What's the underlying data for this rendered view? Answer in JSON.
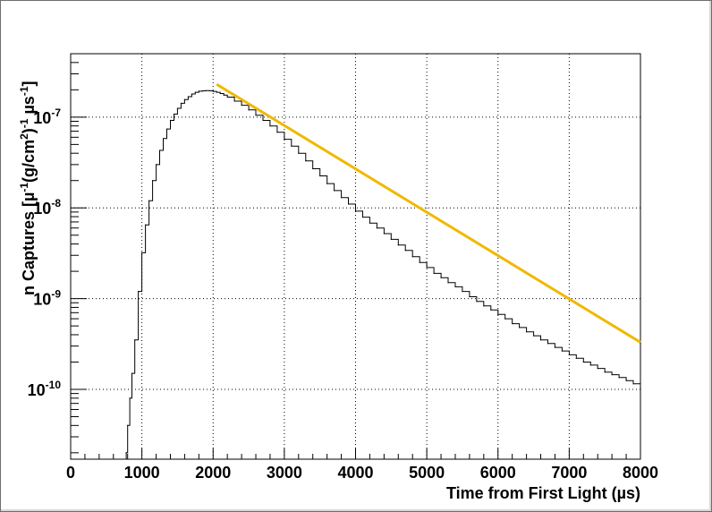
{
  "chart_data": {
    "type": "line",
    "title": "",
    "xlabel": "Time from First Light (µs)",
    "ylabel_parts": [
      "n Captures [µ",
      "-1",
      "(g/cm",
      "2",
      ")",
      "-1",
      " µs",
      "-1",
      "]"
    ],
    "xlim": [
      0,
      8000
    ],
    "ylim": [
      1.7e-11,
      5e-07
    ],
    "yscale": "log",
    "grid": true,
    "x_ticks": [
      "0",
      "1000",
      "2000",
      "3000",
      "4000",
      "5000",
      "6000",
      "7000",
      "8000"
    ],
    "y_ticks": [
      {
        "base": "10",
        "exp": "-10",
        "value": 1e-10
      },
      {
        "base": "10",
        "exp": "-9",
        "value": 1e-09
      },
      {
        "base": "10",
        "exp": "-8",
        "value": 1e-08
      },
      {
        "base": "10",
        "exp": "-7",
        "value": 1e-07
      }
    ],
    "series": [
      {
        "style": "histogram",
        "color": "#000000",
        "x": [
          780,
          800,
          830,
          860,
          900,
          950,
          1000,
          1050,
          1100,
          1150,
          1200,
          1250,
          1300,
          1350,
          1400,
          1450,
          1500,
          1550,
          1600,
          1650,
          1700,
          1750,
          1800,
          1850,
          1900,
          1950,
          2000,
          2050,
          2100,
          2150,
          2200,
          2300,
          2400,
          2500,
          2600,
          2700,
          2800,
          2900,
          3000,
          3100,
          3200,
          3300,
          3400,
          3500,
          3600,
          3700,
          3800,
          3900,
          4000,
          4100,
          4200,
          4300,
          4400,
          4500,
          4600,
          4700,
          4800,
          4900,
          5000,
          5100,
          5200,
          5300,
          5400,
          5500,
          5600,
          5700,
          5800,
          5900,
          6000,
          6100,
          6200,
          6300,
          6400,
          6500,
          6600,
          6700,
          6800,
          6900,
          7000,
          7100,
          7200,
          7300,
          7400,
          7500,
          7600,
          7700,
          7800,
          7900,
          8000
        ],
        "y": [
          2e-11,
          4e-11,
          8e-11,
          1.5e-10,
          3.5e-10,
          1.2e-09,
          3.2e-09,
          6.5e-09,
          1.2e-08,
          2e-08,
          3e-08,
          4.3e-08,
          5.8e-08,
          7.4e-08,
          9.2e-08,
          1.08e-07,
          1.25e-07,
          1.42e-07,
          1.56e-07,
          1.68e-07,
          1.8e-07,
          1.88e-07,
          1.93e-07,
          1.95e-07,
          1.96e-07,
          1.95e-07,
          1.92e-07,
          1.88e-07,
          1.82e-07,
          1.75e-07,
          1.66e-07,
          1.5e-07,
          1.35e-07,
          1.2e-07,
          1.05e-07,
          9.2e-08,
          8e-08,
          6.8e-08,
          5.7e-08,
          4.8e-08,
          4e-08,
          3.3e-08,
          2.7e-08,
          2.25e-08,
          1.85e-08,
          1.55e-08,
          1.3e-08,
          1.1e-08,
          9.2e-09,
          7.9e-09,
          6.8e-09,
          6e-09,
          5.2e-09,
          4.5e-09,
          3.9e-09,
          3.4e-09,
          2.9e-09,
          2.5e-09,
          2.2e-09,
          1.9e-09,
          1.7e-09,
          1.5e-09,
          1.35e-09,
          1.2e-09,
          1.05e-09,
          9.3e-10,
          8.3e-10,
          7.5e-10,
          6.7e-10,
          6e-10,
          5.3e-10,
          4.8e-10,
          4.3e-10,
          3.9e-10,
          3.5e-10,
          3.2e-10,
          2.9e-10,
          2.65e-10,
          2.4e-10,
          2.2e-10,
          2e-10,
          1.85e-10,
          1.7e-10,
          1.55e-10,
          1.45e-10,
          1.35e-10,
          1.25e-10,
          1.15e-10,
          1.05e-10
        ]
      },
      {
        "style": "line",
        "color": "#f0b800",
        "x": [
          2050,
          8000
        ],
        "y": [
          2.3e-07,
          3.3e-10
        ]
      }
    ]
  }
}
